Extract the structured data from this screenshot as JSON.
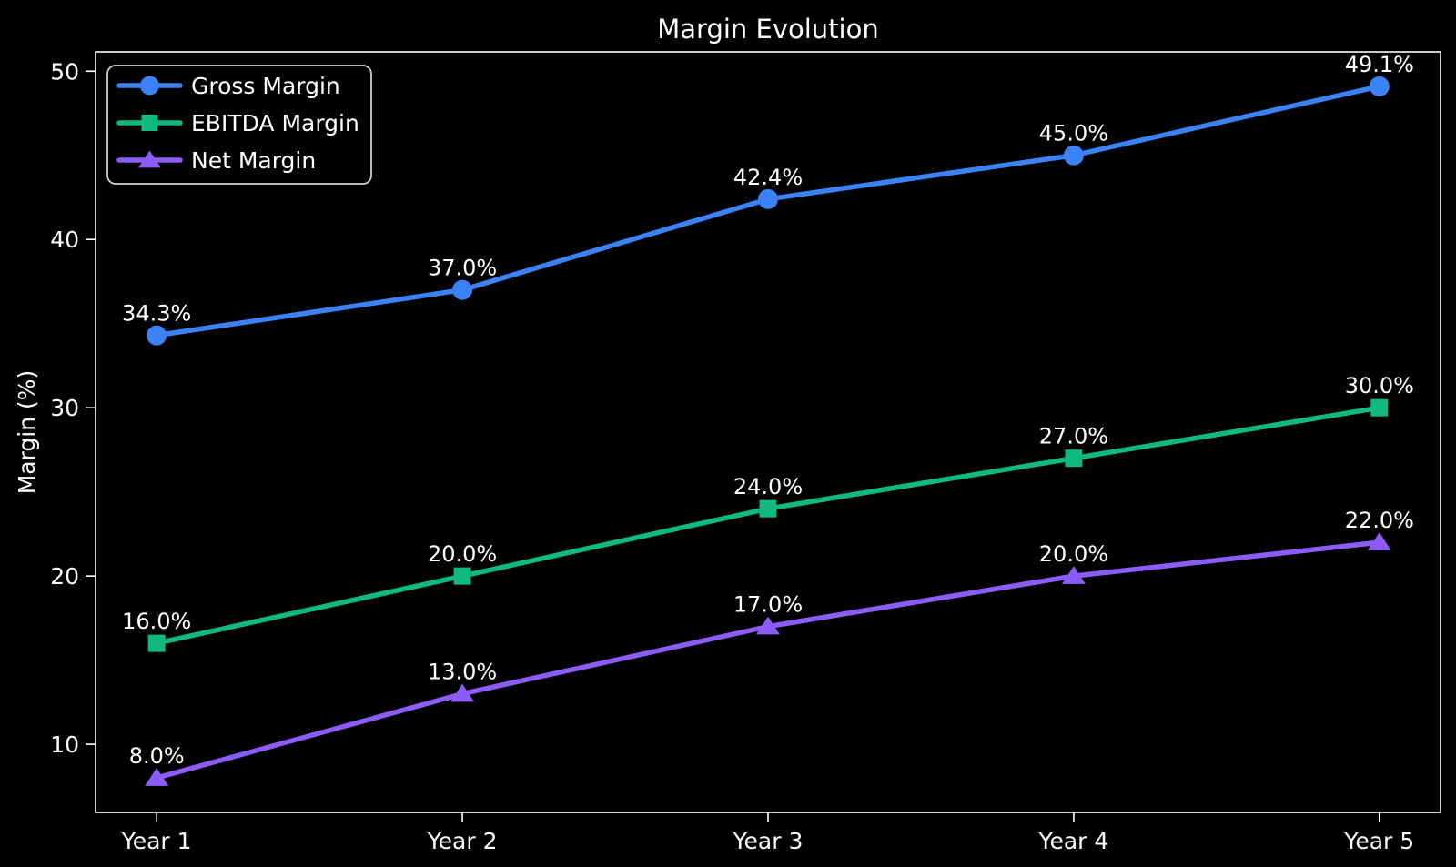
{
  "window": {
    "background_color": "#000000",
    "foreground_color": "#ffffff",
    "spine_color": "#ffffff",
    "legend_border_color": "#cfcfcf"
  },
  "chart_data": {
    "type": "line",
    "title": "Margin Evolution",
    "xlabel": "",
    "ylabel": "Margin (%)",
    "categories": [
      "Year 1",
      "Year 2",
      "Year 3",
      "Year 4",
      "Year 5"
    ],
    "series": [
      {
        "name": "Gross Margin",
        "color": "#3b82f6",
        "marker": "circle",
        "values": [
          34.3,
          37.0,
          42.4,
          45.0,
          49.1
        ],
        "point_labels": [
          "34.3%",
          "37.0%",
          "42.4%",
          "45.0%",
          "49.1%"
        ]
      },
      {
        "name": "EBITDA Margin",
        "color": "#10b981",
        "marker": "square",
        "values": [
          16.0,
          20.0,
          24.0,
          27.0,
          30.0
        ],
        "point_labels": [
          "16.0%",
          "20.0%",
          "24.0%",
          "27.0%",
          "30.0%"
        ]
      },
      {
        "name": "Net Margin",
        "color": "#8b5cf6",
        "marker": "triangle",
        "values": [
          8.0,
          13.0,
          17.0,
          20.0,
          22.0
        ],
        "point_labels": [
          "8.0%",
          "13.0%",
          "17.0%",
          "20.0%",
          "22.0%"
        ]
      }
    ],
    "yticks": [
      10,
      20,
      30,
      40,
      50
    ],
    "ylim": [
      5.95,
      51.15
    ],
    "xlim": [
      -0.2,
      4.2
    ],
    "grid": false,
    "legend_position": "upper-left"
  }
}
